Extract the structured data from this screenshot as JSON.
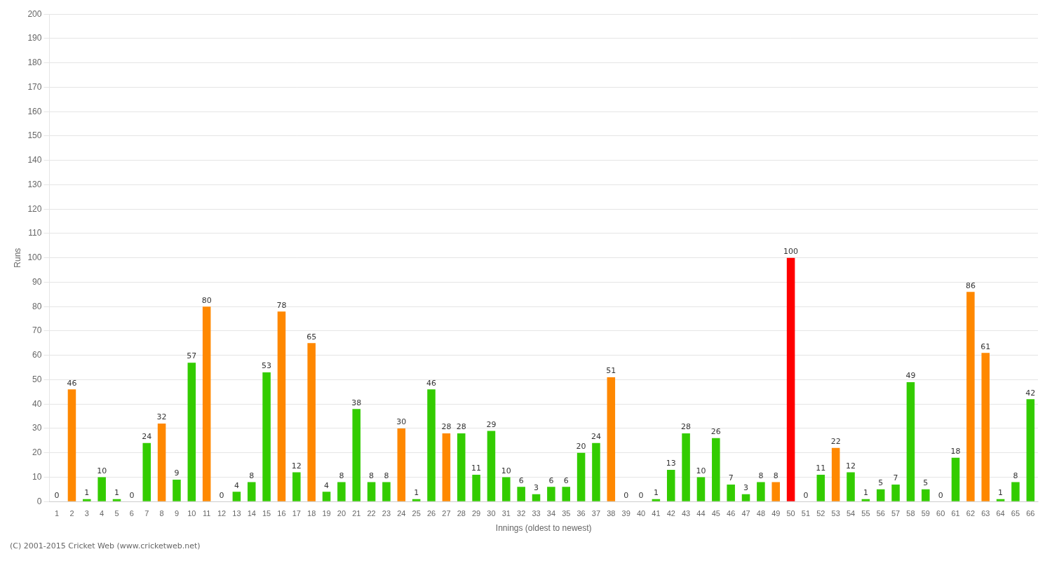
{
  "chart_data": {
    "type": "bar",
    "categories": [
      "1",
      "2",
      "3",
      "4",
      "5",
      "6",
      "7",
      "8",
      "9",
      "10",
      "11",
      "12",
      "13",
      "14",
      "15",
      "16",
      "17",
      "18",
      "19",
      "20",
      "21",
      "22",
      "23",
      "24",
      "25",
      "26",
      "27",
      "28",
      "29",
      "30",
      "31",
      "32",
      "33",
      "34",
      "35",
      "36",
      "37",
      "38",
      "39",
      "40",
      "41",
      "42",
      "43",
      "44",
      "45",
      "46",
      "47",
      "48",
      "49",
      "50",
      "51",
      "52",
      "53",
      "54",
      "55",
      "56",
      "57",
      "58",
      "59",
      "60",
      "61",
      "62",
      "63",
      "64",
      "65",
      "66"
    ],
    "values": [
      0,
      46,
      1,
      10,
      1,
      0,
      24,
      32,
      9,
      57,
      80,
      0,
      4,
      8,
      53,
      78,
      12,
      65,
      4,
      8,
      38,
      8,
      8,
      30,
      1,
      46,
      28,
      28,
      11,
      29,
      10,
      6,
      3,
      6,
      6,
      20,
      24,
      51,
      0,
      0,
      1,
      13,
      28,
      10,
      26,
      7,
      3,
      8,
      8,
      100,
      0,
      11,
      22,
      12,
      1,
      5,
      7,
      49,
      5,
      0,
      18,
      86,
      61,
      1,
      8,
      42
    ],
    "colors": [
      "#33cc00",
      "#ff8800",
      "#33cc00",
      "#33cc00",
      "#33cc00",
      "#33cc00",
      "#33cc00",
      "#ff8800",
      "#33cc00",
      "#33cc00",
      "#ff8800",
      "#33cc00",
      "#33cc00",
      "#33cc00",
      "#33cc00",
      "#ff8800",
      "#33cc00",
      "#ff8800",
      "#33cc00",
      "#33cc00",
      "#33cc00",
      "#33cc00",
      "#33cc00",
      "#ff8800",
      "#33cc00",
      "#33cc00",
      "#ff8800",
      "#33cc00",
      "#33cc00",
      "#33cc00",
      "#33cc00",
      "#33cc00",
      "#33cc00",
      "#33cc00",
      "#33cc00",
      "#33cc00",
      "#33cc00",
      "#ff8800",
      "#33cc00",
      "#33cc00",
      "#33cc00",
      "#33cc00",
      "#33cc00",
      "#33cc00",
      "#33cc00",
      "#33cc00",
      "#33cc00",
      "#33cc00",
      "#ff8800",
      "#ff0000",
      "#33cc00",
      "#33cc00",
      "#ff8800",
      "#33cc00",
      "#33cc00",
      "#33cc00",
      "#33cc00",
      "#33cc00",
      "#33cc00",
      "#33cc00",
      "#33cc00",
      "#ff8800",
      "#ff8800",
      "#33cc00",
      "#33cc00",
      "#33cc00"
    ],
    "xlabel": "Innings (oldest to newest)",
    "ylabel": "Runs",
    "ylim": [
      0,
      200
    ],
    "yticks": [
      0,
      10,
      20,
      30,
      40,
      50,
      60,
      70,
      80,
      90,
      100,
      110,
      120,
      130,
      140,
      150,
      160,
      170,
      180,
      190,
      200
    ],
    "grid": true,
    "data_labels": true,
    "annotations": [
      "(C) 2001-2015 Cricket Web (www.cricketweb.net)"
    ]
  }
}
